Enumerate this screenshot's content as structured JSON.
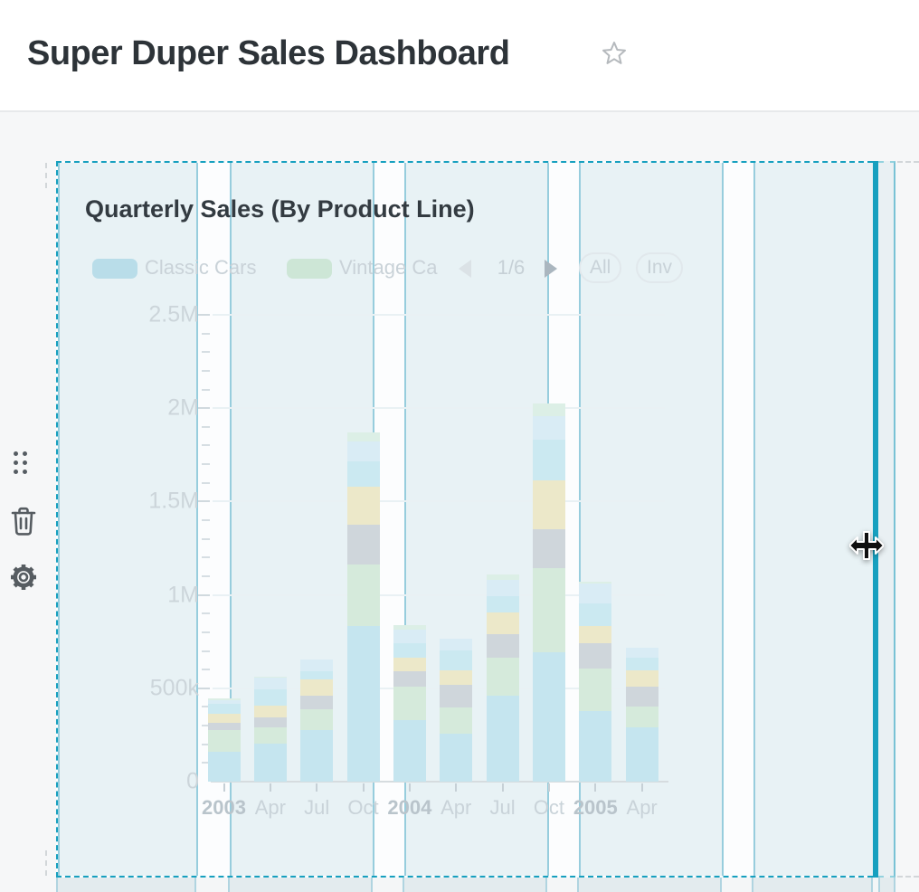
{
  "header": {
    "title": "Super Duper Sales Dashboard",
    "favorite_icon": "star"
  },
  "side_toolbar": {
    "icons": [
      "drag-handle",
      "trash",
      "settings-gear"
    ]
  },
  "card": {
    "title": "Quarterly Sales (By Product Line)",
    "state": "selected-dragging",
    "accent_color": "#17a0bf",
    "legend": {
      "visible_items": [
        {
          "label": "Classic Cars",
          "swatch_color": "#b9dde9"
        },
        {
          "label": "Vintage Ca",
          "swatch_color": "#cde6d6"
        }
      ],
      "pagination": {
        "current": "1/6",
        "prev_icon": "chevron-left",
        "next_icon": "chevron-right"
      },
      "buttons": [
        {
          "label": "All"
        },
        {
          "label": "Inv"
        }
      ]
    }
  },
  "overlay": {
    "cursor_icon": "move-horizontal-cursor"
  },
  "chart_data": {
    "type": "bar",
    "stacked": true,
    "title": "Quarterly Sales (By Product Line)",
    "legend_position": "top",
    "grid": "horizontal-major",
    "x_tick_labels": [
      "2003",
      "Apr",
      "Jul",
      "Oct",
      "2004",
      "Apr",
      "Jul",
      "Oct",
      "2005",
      "Apr"
    ],
    "bold_x_tick_indexes": [
      0,
      4,
      8
    ],
    "y_tick_labels": [
      "0",
      "500k",
      "1M",
      "1.5M",
      "2M",
      "2.5M"
    ],
    "ylim": [
      0,
      2500000
    ],
    "series": [
      {
        "name": "Classic Cars",
        "color": "#c5e5ef",
        "values": [
          160000,
          204000,
          277000,
          835000,
          330000,
          257000,
          461000,
          694000,
          379000,
          291000
        ]
      },
      {
        "name": "Vintage Ca (truncated in legend)",
        "color": "#d5eadb",
        "values": [
          117000,
          87000,
          112000,
          330000,
          180000,
          141000,
          204000,
          447000,
          228000,
          112000
        ]
      },
      {
        "name": "unlabeled-gray-series",
        "color": "#cfd6db",
        "values": [
          39000,
          53000,
          73000,
          209000,
          83000,
          121000,
          126000,
          209000,
          136000,
          107000
        ]
      },
      {
        "name": "unlabeled-yellow-series",
        "color": "#ece8c9",
        "values": [
          49000,
          63000,
          87000,
          204000,
          73000,
          78000,
          116000,
          262000,
          92000,
          87000
        ]
      },
      {
        "name": "unlabeled-cyan-series",
        "color": "#cbe9f1",
        "values": [
          50000,
          87000,
          44000,
          136000,
          73000,
          107000,
          87000,
          218000,
          121000,
          68000
        ]
      },
      {
        "name": "unlabeled-pale-blue-series",
        "color": "#d9ecf5",
        "values": [
          23000,
          63000,
          63000,
          107000,
          73000,
          63000,
          87000,
          126000,
          106000,
          53000
        ]
      },
      {
        "name": "unlabeled-mint-series",
        "color": "#dcefe6",
        "values": [
          10000,
          5000,
          0,
          48000,
          24000,
          0,
          29000,
          68000,
          10000,
          0
        ]
      }
    ],
    "estimated_bar_totals": [
      448000,
      562000,
      656000,
      1869000,
      836000,
      767000,
      1110000,
      2024000,
      1072000,
      718000
    ]
  }
}
